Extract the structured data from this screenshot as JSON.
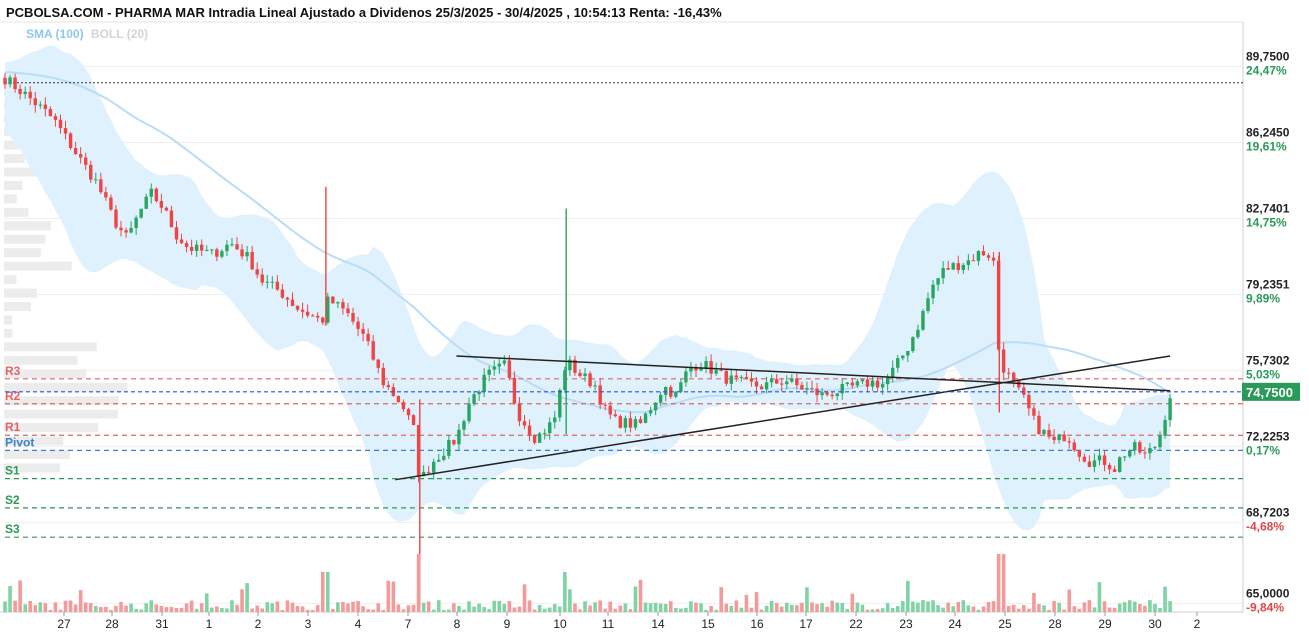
{
  "title": "PCBOLSA.COM - PHARMA MAR Intradia Lineal Ajustado a Dividenos 25/3/2025 - 30/4/2025 , 10:54:13 Renta: -16,43%",
  "legend": {
    "sma": "SMA (100)",
    "boll": "BOLL (20)"
  },
  "colors": {
    "up": "#26a660",
    "down": "#ef4444",
    "band": "#dff1fc",
    "sma": "#b9ddf5",
    "resistance": "#e46464",
    "pivot": "#3a7fd0",
    "support": "#2a9a5a",
    "current": "#2a9a5a"
  },
  "chart_data": {
    "type": "candlestick",
    "ylim": [
      64.6,
      91.8
    ],
    "x_categories": [
      "27",
      "28",
      "31",
      "1",
      "2",
      "3",
      "4",
      "7",
      "8",
      "9",
      "10",
      "11",
      "14",
      "15",
      "16",
      "17",
      "22",
      "23",
      "24",
      "25",
      "28",
      "29",
      "30",
      "2"
    ],
    "price_ticks": [
      {
        "value": "89,7500",
        "pct": "24,47%",
        "v": 89.75
      },
      {
        "value": "86,2450",
        "pct": "19,61%",
        "v": 86.245
      },
      {
        "value": "82,7401",
        "pct": "14,75%",
        "v": 82.7401
      },
      {
        "value": "79,2351",
        "pct": "9,89%",
        "v": 79.2351
      },
      {
        "value": "75,7302",
        "pct": "5,03%",
        "v": 75.7302
      },
      {
        "value": "72,2253",
        "pct": "0,17%",
        "v": 72.2253
      },
      {
        "value": "68,7203",
        "pct": "-4,68%",
        "v": 68.7203
      },
      {
        "value": "65,0000",
        "pct": "-9,84%",
        "v": 65.0
      }
    ],
    "current_price": "74,7500",
    "reference_level": 89.0,
    "levels": [
      {
        "label": "R3",
        "value": 75.35,
        "type": "resistance"
      },
      {
        "label": "R2",
        "value": 74.2,
        "type": "resistance"
      },
      {
        "label": "R1",
        "value": 72.75,
        "type": "resistance"
      },
      {
        "label": "Pivot",
        "value": 72.05,
        "type": "pivot"
      },
      {
        "label": "S1",
        "value": 70.75,
        "type": "support"
      },
      {
        "label": "S2",
        "value": 69.4,
        "type": "support"
      },
      {
        "label": "S3",
        "value": 68.05,
        "type": "support"
      }
    ],
    "trendlines": [
      {
        "x": [
          0.37,
          0.955
        ],
        "y": [
          76.4,
          74.8
        ]
      },
      {
        "x": [
          0.32,
          0.955
        ],
        "y": [
          70.7,
          76.4
        ]
      }
    ],
    "close_path": [
      [
        0.0,
        89.2
      ],
      [
        0.02,
        88.3
      ],
      [
        0.04,
        87.3
      ],
      [
        0.06,
        85.6
      ],
      [
        0.075,
        84.4
      ],
      [
        0.09,
        82.6
      ],
      [
        0.1,
        81.8
      ],
      [
        0.11,
        83.0
      ],
      [
        0.12,
        83.9
      ],
      [
        0.13,
        83.2
      ],
      [
        0.14,
        82.0
      ],
      [
        0.15,
        81.4
      ],
      [
        0.17,
        81.1
      ],
      [
        0.185,
        81.6
      ],
      [
        0.2,
        80.9
      ],
      [
        0.21,
        79.9
      ],
      [
        0.225,
        79.4
      ],
      [
        0.24,
        78.6
      ],
      [
        0.26,
        78.0
      ],
      [
        0.265,
        79.0
      ],
      [
        0.28,
        78.4
      ],
      [
        0.295,
        77.2
      ],
      [
        0.31,
        75.2
      ],
      [
        0.325,
        74.2
      ],
      [
        0.335,
        73.0
      ],
      [
        0.34,
        70.6
      ],
      [
        0.35,
        71.5
      ],
      [
        0.37,
        72.6
      ],
      [
        0.38,
        74.2
      ],
      [
        0.395,
        75.5
      ],
      [
        0.41,
        76.0
      ],
      [
        0.42,
        73.8
      ],
      [
        0.435,
        72.6
      ],
      [
        0.45,
        73.4
      ],
      [
        0.46,
        76.2
      ],
      [
        0.47,
        75.6
      ],
      [
        0.485,
        75.0
      ],
      [
        0.49,
        74.0
      ],
      [
        0.5,
        73.4
      ],
      [
        0.52,
        73.2
      ],
      [
        0.54,
        75.0
      ],
      [
        0.55,
        74.6
      ],
      [
        0.56,
        75.8
      ],
      [
        0.57,
        76.1
      ],
      [
        0.59,
        75.4
      ],
      [
        0.6,
        75.2
      ],
      [
        0.62,
        75.0
      ],
      [
        0.64,
        75.3
      ],
      [
        0.65,
        75.0
      ],
      [
        0.67,
        74.6
      ],
      [
        0.69,
        74.9
      ],
      [
        0.71,
        75.2
      ],
      [
        0.72,
        75.1
      ],
      [
        0.73,
        75.9
      ],
      [
        0.74,
        76.8
      ],
      [
        0.75,
        78.0
      ],
      [
        0.76,
        79.6
      ],
      [
        0.77,
        80.4
      ],
      [
        0.78,
        80.6
      ],
      [
        0.79,
        80.8
      ],
      [
        0.8,
        81.2
      ],
      [
        0.81,
        81.0
      ],
      [
        0.815,
        76.2
      ],
      [
        0.83,
        74.8
      ],
      [
        0.835,
        74.4
      ],
      [
        0.845,
        73.2
      ],
      [
        0.86,
        72.4
      ],
      [
        0.87,
        72.8
      ],
      [
        0.88,
        72.0
      ],
      [
        0.89,
        71.5
      ],
      [
        0.9,
        71.6
      ],
      [
        0.91,
        71.2
      ],
      [
        0.915,
        71.8
      ],
      [
        0.925,
        72.2
      ],
      [
        0.935,
        71.8
      ],
      [
        0.945,
        72.4
      ],
      [
        0.955,
        74.6
      ]
    ],
    "spikes": [
      {
        "x": 0.263,
        "hi": 84.2,
        "lo": 77.8
      },
      {
        "x": 0.34,
        "hi": 74.4,
        "lo": 64.8
      },
      {
        "x": 0.46,
        "hi": 83.2,
        "lo": 72.8
      },
      {
        "x": 0.815,
        "hi": 81.2,
        "lo": 73.8
      }
    ]
  }
}
